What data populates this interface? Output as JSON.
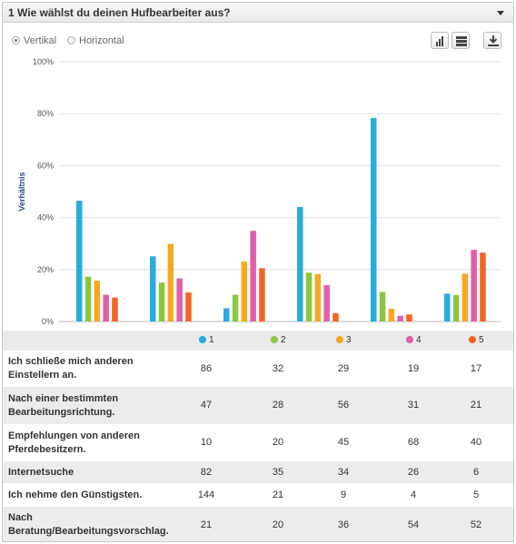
{
  "header": {
    "title": "1 Wie wählst du deinen Hufbearbeiter aus?"
  },
  "controls": {
    "vertical_label": "Vertikal",
    "horizontal_label": "Horizontal"
  },
  "colors": {
    "1": "#29abe2",
    "2": "#8cc63f",
    "3": "#f7a823",
    "4": "#e15fa8",
    "5": "#f26522"
  },
  "chart_data": {
    "type": "bar",
    "ylabel": "Verhältnis",
    "ylim": [
      0,
      100
    ],
    "yticks": [
      "0%",
      "20%",
      "40%",
      "60%",
      "80%",
      "100%"
    ],
    "grid": true,
    "categories": [
      "Ich schließe mich anderen Einstellern an.",
      "Nach einer bestimmten Bearbeitungsrichtung.",
      "Empfehlungen von anderen Pferdebesitzern.",
      "Internetsuche",
      "Ich nehme den Günstigsten.",
      "Nach Beratung/Bearbeitungsvorschlag."
    ],
    "series": [
      {
        "name": "1",
        "values": [
          46.5,
          25.1,
          5.1,
          44.1,
          78.3,
          10.7
        ]
      },
      {
        "name": "2",
        "values": [
          17.3,
          15.0,
          10.3,
          18.8,
          11.4,
          10.2
        ]
      },
      {
        "name": "3",
        "values": [
          15.7,
          29.9,
          23.1,
          18.3,
          4.9,
          18.4
        ]
      },
      {
        "name": "4",
        "values": [
          10.3,
          16.6,
          34.9,
          14.0,
          2.2,
          27.6
        ]
      },
      {
        "name": "5",
        "values": [
          9.2,
          11.2,
          20.5,
          3.2,
          2.7,
          26.5
        ]
      }
    ]
  },
  "table": {
    "legend": [
      "1",
      "2",
      "3",
      "4",
      "5"
    ],
    "rows": [
      {
        "label": "Ich schließe mich anderen Einstellern an.",
        "label_lines": [
          "Ich schließe mich anderen",
          "Einstellern an."
        ],
        "values": [
          "86",
          "32",
          "29",
          "19",
          "17"
        ]
      },
      {
        "label": "Nach einer bestimmten Bearbeitungsrichtung.",
        "label_lines": [
          "Nach einer bestimmten",
          "Bearbeitungsrichtung."
        ],
        "values": [
          "47",
          "28",
          "56",
          "31",
          "21"
        ]
      },
      {
        "label": "Empfehlungen von anderen Pferdebesitzern.",
        "label_lines": [
          "Empfehlungen von anderen",
          "Pferdebesitzern."
        ],
        "values": [
          "10",
          "20",
          "45",
          "68",
          "40"
        ]
      },
      {
        "label": "Internetsuche",
        "label_lines": [
          "Internetsuche"
        ],
        "values": [
          "82",
          "35",
          "34",
          "26",
          "6"
        ]
      },
      {
        "label": "Ich nehme den Günstigsten.",
        "label_lines": [
          "Ich nehme den Günstigsten."
        ],
        "values": [
          "144",
          "21",
          "9",
          "4",
          "5"
        ]
      },
      {
        "label": "Nach Beratung/Bearbeitungsvorschlag.",
        "label_lines": [
          "Nach",
          "Beratung/Bearbeitungsvorschlag."
        ],
        "values": [
          "21",
          "20",
          "36",
          "54",
          "52"
        ]
      }
    ]
  }
}
